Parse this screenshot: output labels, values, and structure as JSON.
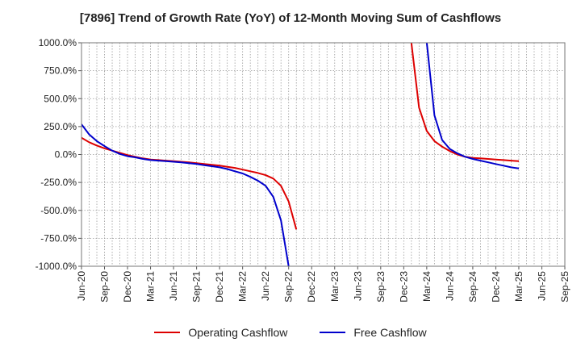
{
  "title": "[7896]  Trend of Growth Rate (YoY) of 12-Month Moving Sum of Cashflows",
  "chart_data": {
    "type": "line",
    "title": "[7896]  Trend of Growth Rate (YoY) of 12-Month Moving Sum of Cashflows",
    "xlabel": "",
    "ylabel": "",
    "ylim": [
      -1000,
      1000
    ],
    "y_ticks": [
      1000,
      750,
      500,
      250,
      0,
      -250,
      -500,
      -750,
      -1000
    ],
    "y_tick_labels": [
      "1000.0%",
      "750.0%",
      "500.0%",
      "250.0%",
      "0.0%",
      "-250.0%",
      "-500.0%",
      "-750.0%",
      "-1000.0%"
    ],
    "x_range": [
      "2020-06",
      "2025-09"
    ],
    "x_tick_labels": [
      "Jun-20",
      "Sep-20",
      "Dec-20",
      "Mar-21",
      "Jun-21",
      "Sep-21",
      "Dec-21",
      "Mar-22",
      "Jun-22",
      "Sep-22",
      "Dec-22",
      "Mar-23",
      "Jun-23",
      "Sep-23",
      "Dec-23",
      "Mar-24",
      "Jun-24",
      "Sep-24",
      "Dec-24",
      "Mar-25",
      "Jun-25",
      "Sep-25"
    ],
    "grid": true,
    "legend_position": "bottom",
    "series": [
      {
        "name": "Operating Cashflow",
        "color": "#dd0000",
        "points": [
          [
            "2020-06",
            150
          ],
          [
            "2020-07",
            110
          ],
          [
            "2020-08",
            80
          ],
          [
            "2020-09",
            55
          ],
          [
            "2020-10",
            35
          ],
          [
            "2020-11",
            15
          ],
          [
            "2020-12",
            -5
          ],
          [
            "2021-01",
            -20
          ],
          [
            "2021-02",
            -35
          ],
          [
            "2021-03",
            -45
          ],
          [
            "2021-04",
            -50
          ],
          [
            "2021-05",
            -55
          ],
          [
            "2021-06",
            -60
          ],
          [
            "2021-07",
            -65
          ],
          [
            "2021-08",
            -70
          ],
          [
            "2021-09",
            -78
          ],
          [
            "2021-10",
            -85
          ],
          [
            "2021-11",
            -92
          ],
          [
            "2021-12",
            -100
          ],
          [
            "2022-01",
            -110
          ],
          [
            "2022-02",
            -120
          ],
          [
            "2022-03",
            -135
          ],
          [
            "2022-04",
            -150
          ],
          [
            "2022-05",
            -165
          ],
          [
            "2022-06",
            -185
          ],
          [
            "2022-07",
            -215
          ],
          [
            "2022-08",
            -280
          ],
          [
            "2022-09",
            -420
          ],
          [
            "2022-10",
            -670
          ]
        ],
        "segment_2": [
          [
            "2024-01",
            1000
          ],
          [
            "2024-02",
            420
          ],
          [
            "2024-03",
            210
          ],
          [
            "2024-04",
            120
          ],
          [
            "2024-05",
            70
          ],
          [
            "2024-06",
            30
          ],
          [
            "2024-07",
            0
          ],
          [
            "2024-08",
            -20
          ],
          [
            "2024-09",
            -30
          ],
          [
            "2024-10",
            -35
          ],
          [
            "2024-11",
            -40
          ],
          [
            "2024-12",
            -45
          ],
          [
            "2025-01",
            -50
          ],
          [
            "2025-02",
            -55
          ],
          [
            "2025-03",
            -60
          ]
        ]
      },
      {
        "name": "Free Cashflow",
        "color": "#0000cc",
        "points": [
          [
            "2020-06",
            270
          ],
          [
            "2020-07",
            180
          ],
          [
            "2020-08",
            120
          ],
          [
            "2020-09",
            75
          ],
          [
            "2020-10",
            35
          ],
          [
            "2020-11",
            5
          ],
          [
            "2020-12",
            -15
          ],
          [
            "2021-01",
            -25
          ],
          [
            "2021-02",
            -40
          ],
          [
            "2021-03",
            -50
          ],
          [
            "2021-04",
            -55
          ],
          [
            "2021-05",
            -60
          ],
          [
            "2021-06",
            -65
          ],
          [
            "2021-07",
            -70
          ],
          [
            "2021-08",
            -78
          ],
          [
            "2021-09",
            -85
          ],
          [
            "2021-10",
            -95
          ],
          [
            "2021-11",
            -105
          ],
          [
            "2021-12",
            -115
          ],
          [
            "2022-01",
            -130
          ],
          [
            "2022-02",
            -150
          ],
          [
            "2022-03",
            -170
          ],
          [
            "2022-04",
            -200
          ],
          [
            "2022-05",
            -235
          ],
          [
            "2022-06",
            -280
          ],
          [
            "2022-07",
            -380
          ],
          [
            "2022-08",
            -590
          ],
          [
            "2022-09",
            -1000
          ]
        ],
        "segment_2": [
          [
            "2024-03",
            1000
          ],
          [
            "2024-04",
            350
          ],
          [
            "2024-05",
            130
          ],
          [
            "2024-06",
            50
          ],
          [
            "2024-07",
            10
          ],
          [
            "2024-08",
            -20
          ],
          [
            "2024-09",
            -40
          ],
          [
            "2024-10",
            -55
          ],
          [
            "2024-11",
            -70
          ],
          [
            "2024-12",
            -85
          ],
          [
            "2025-01",
            -100
          ],
          [
            "2025-02",
            -115
          ],
          [
            "2025-03",
            -125
          ]
        ]
      }
    ]
  }
}
